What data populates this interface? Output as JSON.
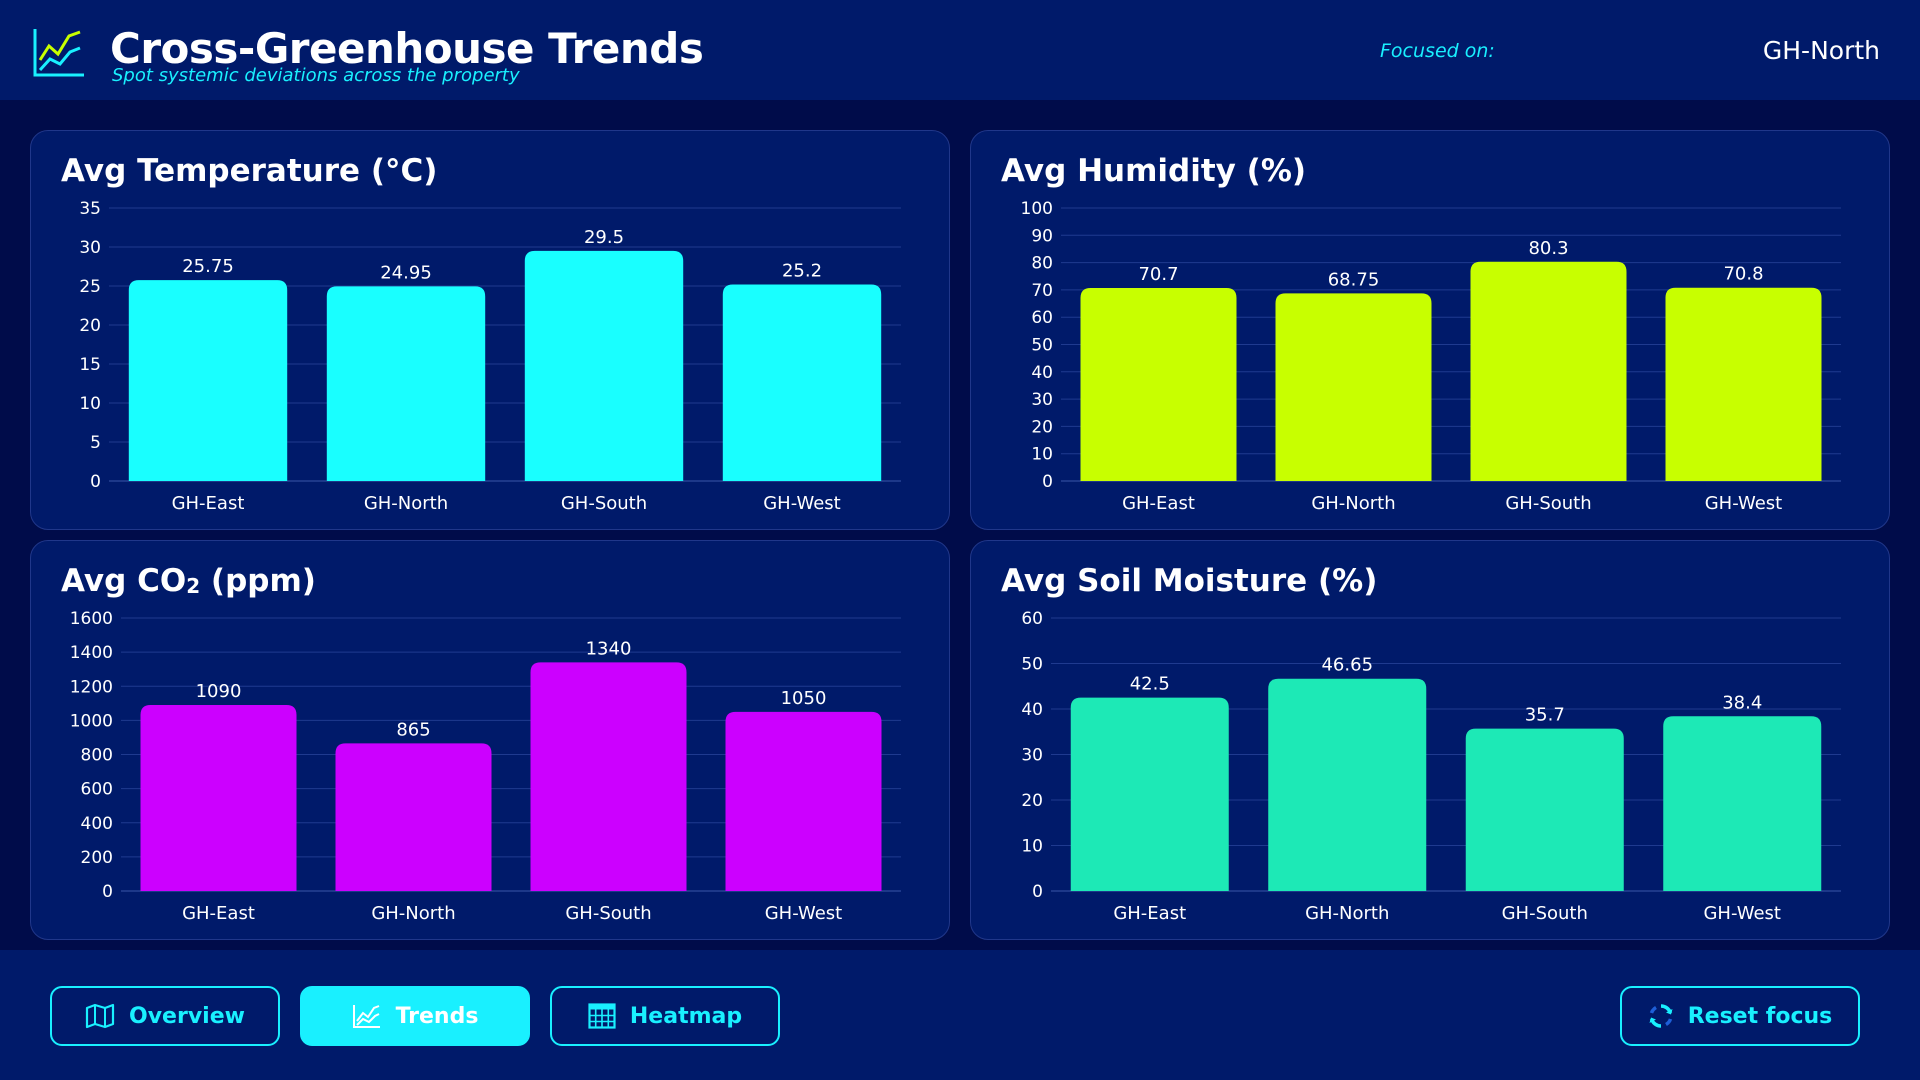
{
  "header": {
    "title": "Cross-Greenhouse Trends",
    "subtitle": "Spot systemic deviations across the property",
    "focus_label": "Focused on:",
    "focus_value": "GH-North"
  },
  "cards": {
    "temp_title": "Avg Temperature (°C)",
    "hum_title": "Avg Humidity (%)",
    "co2_title_main": "Avg CO",
    "co2_title_sub": "2",
    "co2_title_tail": " (ppm)",
    "soil_title": "Avg Soil Moisture (%)"
  },
  "footer": {
    "overview": "Overview",
    "trends": "Trends",
    "heatmap": "Heatmap",
    "reset": "Reset focus"
  },
  "colors": {
    "temperature": "#19ffff",
    "humidity": "#c8ff00",
    "co2": "#cc00ff",
    "soil": "#1de9b6",
    "accent": "#19f0ff"
  },
  "icons": {
    "app": "trend-chart-icon",
    "overview": "map-icon",
    "trends": "line-chart-icon",
    "heatmap": "grid-calendar-icon",
    "reset": "refresh-icon"
  },
  "chart_data": [
    {
      "type": "bar",
      "title": "Avg Temperature (°C)",
      "categories": [
        "GH-East",
        "GH-North",
        "GH-South",
        "GH-West"
      ],
      "values": [
        25.75,
        24.95,
        29.5,
        25.2
      ],
      "value_labels": [
        "25.75",
        "24.95",
        "29.5",
        "25.2"
      ],
      "ylim": [
        0,
        35
      ],
      "yticks": [
        0,
        5,
        10,
        15,
        20,
        25,
        30,
        35
      ],
      "grid": true,
      "color": "#19ffff"
    },
    {
      "type": "bar",
      "title": "Avg Humidity (%)",
      "categories": [
        "GH-East",
        "GH-North",
        "GH-South",
        "GH-West"
      ],
      "values": [
        70.7,
        68.75,
        80.3,
        70.8
      ],
      "value_labels": [
        "70.7",
        "68.75",
        "80.3",
        "70.8"
      ],
      "ylim": [
        0,
        100
      ],
      "yticks": [
        0,
        10,
        20,
        30,
        40,
        50,
        60,
        70,
        80,
        90,
        100
      ],
      "grid": true,
      "color": "#c8ff00"
    },
    {
      "type": "bar",
      "title": "Avg CO₂ (ppm)",
      "categories": [
        "GH-East",
        "GH-North",
        "GH-South",
        "GH-West"
      ],
      "values": [
        1090,
        865,
        1340,
        1050
      ],
      "value_labels": [
        "1090",
        "865",
        "1340",
        "1050"
      ],
      "ylim": [
        0,
        1600
      ],
      "yticks": [
        0,
        200,
        400,
        600,
        800,
        1000,
        1200,
        1400,
        1600
      ],
      "grid": true,
      "color": "#cc00ff"
    },
    {
      "type": "bar",
      "title": "Avg Soil Moisture (%)",
      "categories": [
        "GH-East",
        "GH-North",
        "GH-South",
        "GH-West"
      ],
      "values": [
        42.5,
        46.65,
        35.7,
        38.4
      ],
      "value_labels": [
        "42.5",
        "46.65",
        "35.7",
        "38.4"
      ],
      "ylim": [
        0,
        60
      ],
      "yticks": [
        0,
        10,
        20,
        30,
        40,
        50,
        60
      ],
      "grid": true,
      "color": "#1de9b6"
    }
  ]
}
